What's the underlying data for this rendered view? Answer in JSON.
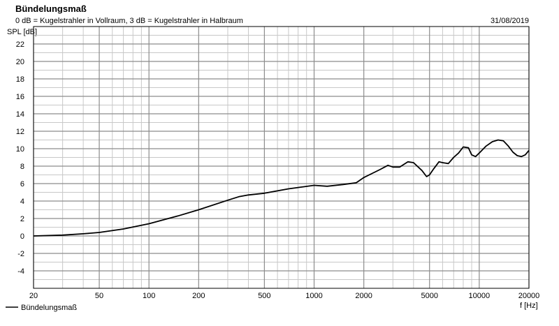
{
  "chart_data": {
    "type": "line",
    "title": "Bündelungsmaß",
    "subtitle": "0 dB = Kugelstrahler in Vollraum, 3 dB = Kugelstrahler in Halbraum",
    "date": "31/08/2019",
    "ylabel": "SPL [dB]",
    "xlabel": "f [Hz]",
    "x_scale": "log",
    "xlim": [
      20,
      20000
    ],
    "ylim": [
      -6,
      24
    ],
    "x_ticks": [
      20,
      50,
      100,
      200,
      500,
      1000,
      2000,
      5000,
      10000,
      20000
    ],
    "x_tick_labels": [
      "20",
      "50",
      "100",
      "200",
      "500",
      "1000",
      "2000",
      "5000",
      "10000",
      "20000"
    ],
    "y_ticks": [
      -4,
      -2,
      0,
      2,
      4,
      6,
      8,
      10,
      12,
      14,
      16,
      18,
      20,
      22
    ],
    "y_tick_labels": [
      "-4",
      "-2",
      "0",
      "2",
      "4",
      "6",
      "8",
      "10",
      "12",
      "14",
      "16",
      "18",
      "20",
      "22"
    ],
    "grid": true,
    "legend_position": "bottom-left",
    "colors": {
      "line": "#000000",
      "grid_major": "#8c8c8c",
      "grid_minor": "#c8c8c8",
      "background": "#ffffff"
    },
    "series": [
      {
        "name": "Bündelungsmaß",
        "x": [
          20,
          30,
          40,
          50,
          70,
          100,
          150,
          200,
          300,
          350,
          400,
          500,
          700,
          1000,
          1200,
          1500,
          1800,
          2000,
          2500,
          2800,
          3000,
          3300,
          3700,
          4000,
          4500,
          4800,
          5000,
          5300,
          5700,
          6000,
          6500,
          7000,
          7500,
          8000,
          8600,
          9000,
          9500,
          10000,
          11000,
          12000,
          13000,
          14000,
          15000,
          16000,
          17000,
          18000,
          19000,
          20000
        ],
        "y": [
          0.0,
          0.1,
          0.25,
          0.4,
          0.8,
          1.4,
          2.3,
          3.0,
          4.1,
          4.5,
          4.7,
          4.9,
          5.4,
          5.8,
          5.7,
          5.9,
          6.1,
          6.7,
          7.6,
          8.1,
          7.9,
          7.9,
          8.5,
          8.4,
          7.5,
          6.8,
          7.0,
          7.7,
          8.5,
          8.4,
          8.3,
          9.0,
          9.5,
          10.2,
          10.1,
          9.3,
          9.1,
          9.5,
          10.3,
          10.8,
          11.0,
          10.9,
          10.3,
          9.6,
          9.2,
          9.1,
          9.3,
          9.8
        ]
      }
    ]
  }
}
